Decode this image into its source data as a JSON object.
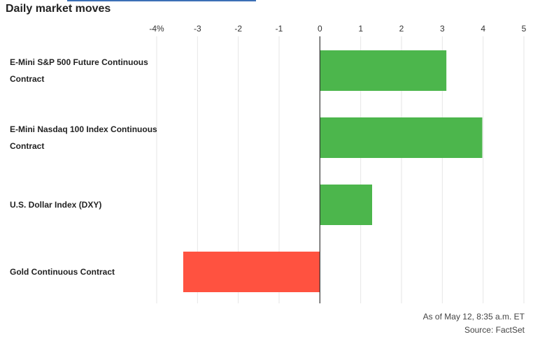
{
  "chart_data": {
    "type": "bar",
    "orientation": "horizontal",
    "title": "Daily market moves",
    "xlim": [
      -4,
      5
    ],
    "ticks": [
      -4,
      -3,
      -2,
      -1,
      0,
      1,
      2,
      3,
      4,
      5
    ],
    "tick_labels": [
      "-4%",
      "-3",
      "-2",
      "-1",
      "0",
      "1",
      "2",
      "3",
      "4",
      "5"
    ],
    "categories": [
      [
        "E-Mini S&P 500 Future Continuous",
        "Contract"
      ],
      [
        "E-Mini Nasdaq 100 Index Continuous",
        "Contract"
      ],
      [
        "U.S. Dollar Index (DXY)"
      ],
      [
        "Gold Continuous Contract"
      ]
    ],
    "values": [
      3.1,
      3.98,
      1.28,
      -3.35
    ],
    "grid": true,
    "colors": {
      "positive": "#4cb64c",
      "negative": "#ff5240",
      "grid": "#e6e6e6",
      "zero_line": "#333333"
    }
  },
  "footer": {
    "as_of": "As of May 12, 8:35 a.m. ET",
    "source": "Source: FactSet"
  }
}
